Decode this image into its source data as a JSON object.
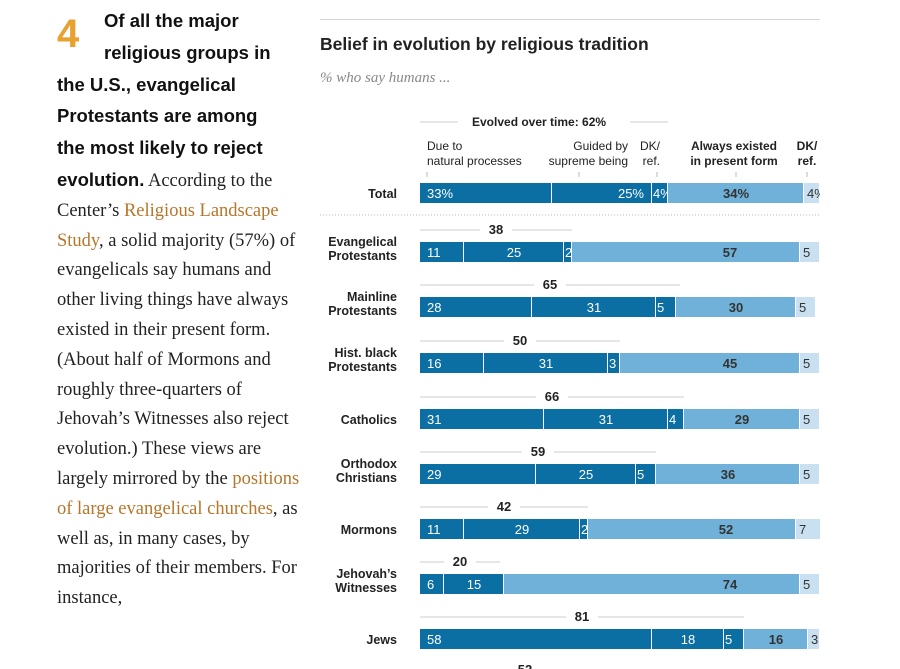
{
  "article": {
    "number": "4",
    "lead_lines": [
      "Of all the major",
      "religious groups in",
      "the U.S., evangelical",
      "Protestants are among",
      "the most likely to reject"
    ],
    "lead_end": "evolution.",
    "text_1": " According to the Center’s ",
    "link_1": "Religious Landscape Study",
    "text_2": ", a solid majority (57%) of evangelicals say humans and other living things have always existed in their present form. (About half of Mormons and roughly three-quarters of Jehovah’s Witnesses also reject evolution.) These views are largely mirrored by the ",
    "link_2": "positions of large evangelical churches",
    "text_3": ", as well as, in many cases, by majorities of their members. For instance,",
    "link_color": "#b5762a",
    "number_color": "#e8a02e"
  },
  "chart_data": {
    "type": "bar",
    "orientation": "horizontal-stacked",
    "title": "Belief in evolution by religious tradition",
    "subtitle": "% who say humans ...",
    "group_header": "Evolved over time: 62%",
    "xlim": [
      0,
      100
    ],
    "series": [
      {
        "name": "Due to natural processes",
        "label_lines": [
          "Due to",
          "natural processes"
        ],
        "color": "#0b6fa4",
        "values": [
          33,
          11,
          28,
          16,
          31,
          29,
          11,
          6,
          58
        ]
      },
      {
        "name": "Guided by supreme being",
        "label_lines": [
          "Guided by",
          "supreme being"
        ],
        "color": "#0b6fa4",
        "values": [
          25,
          25,
          31,
          31,
          31,
          25,
          29,
          15,
          18
        ]
      },
      {
        "name": "DK/ref. (evolved)",
        "label_lines": [
          "DK/",
          "ref."
        ],
        "color": "#0b6fa4",
        "values": [
          4,
          2,
          5,
          3,
          4,
          5,
          2,
          null,
          5
        ]
      },
      {
        "name": "Always existed in present form",
        "label_lines": [
          "Always existed",
          "in present form"
        ],
        "color": "#6fb1d8",
        "values": [
          34,
          57,
          30,
          45,
          29,
          36,
          52,
          74,
          16
        ]
      },
      {
        "name": "DK/ref.",
        "label_lines": [
          "DK/",
          "ref."
        ],
        "color": "#c8e0f0",
        "values": [
          4,
          5,
          5,
          5,
          5,
          5,
          7,
          5,
          3
        ]
      }
    ],
    "categories": [
      {
        "label": [
          "Total"
        ],
        "evolved_total": null,
        "pct": true
      },
      {
        "label": [
          "Evangelical",
          "Protestants"
        ],
        "evolved_total": 38
      },
      {
        "label": [
          "Mainline",
          "Protestants"
        ],
        "evolved_total": 65
      },
      {
        "label": [
          "Hist. black",
          "Protestants"
        ],
        "evolved_total": 50
      },
      {
        "label": [
          "Catholics"
        ],
        "evolved_total": 66
      },
      {
        "label": [
          "Orthodox",
          "Christians"
        ],
        "evolved_total": 59
      },
      {
        "label": [
          "Mormons"
        ],
        "evolved_total": 42
      },
      {
        "label": [
          "Jehovah’s",
          "Witnesses"
        ],
        "evolved_total": 20
      },
      {
        "label": [
          "Jews"
        ],
        "evolved_total": 81
      }
    ],
    "bold_headers": [
      "Always existed in present form",
      "DK/ref."
    ]
  }
}
